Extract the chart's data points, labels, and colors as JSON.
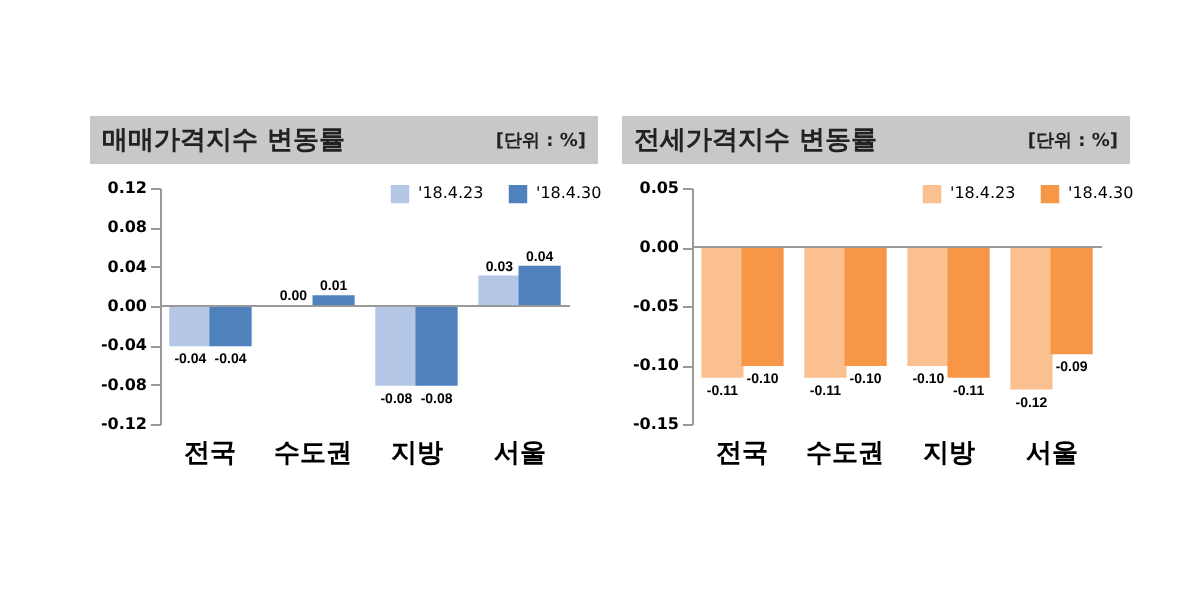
{
  "chart_data": [
    {
      "type": "bar",
      "title": "매매가격지수 변동률",
      "annotations": [
        "[단위 : %]"
      ],
      "categories": [
        "전국",
        "수도권",
        "지방",
        "서울"
      ],
      "series": [
        {
          "name": "'18.4.23",
          "color": "#b4c7e7",
          "values": [
            -0.04,
            0.0,
            -0.08,
            0.03
          ],
          "value_labels": [
            "-0.04",
            "0.00",
            "-0.08",
            "0.03"
          ]
        },
        {
          "name": "'18.4.30",
          "color": "#4f81bd",
          "values": [
            -0.04,
            0.01,
            -0.08,
            0.04
          ],
          "value_labels": [
            "-0.04",
            "0.01",
            "-0.08",
            "0.04"
          ]
        }
      ],
      "ylim": [
        -0.12,
        0.12
      ],
      "yticks": [
        {
          "value": -0.12,
          "label": "-0.12"
        },
        {
          "value": -0.08,
          "label": "-0.08"
        },
        {
          "value": -0.04,
          "label": "-0.04"
        },
        {
          "value": 0,
          "label": "0.00"
        },
        {
          "value": 0.04,
          "label": "0.04"
        },
        {
          "value": 0.08,
          "label": "0.08"
        },
        {
          "value": 0.12,
          "label": "0.12"
        }
      ],
      "ref_lines": [
        {
          "axis": "y",
          "value": 0,
          "color": "#999999"
        }
      ],
      "legend": "top right"
    },
    {
      "type": "bar",
      "title": "전세가격지수 변동률",
      "annotations": [
        "[단위 : %]"
      ],
      "categories": [
        "전국",
        "수도권",
        "지방",
        "서울"
      ],
      "series": [
        {
          "name": "'18.4.23",
          "color": "#fac090",
          "values": [
            -0.11,
            -0.11,
            -0.1,
            -0.12
          ],
          "value_labels": [
            "-0.11",
            "-0.11",
            "-0.10",
            "-0.12"
          ]
        },
        {
          "name": "'18.4.30",
          "color": "#f79646",
          "values": [
            -0.1,
            -0.1,
            -0.11,
            -0.09
          ],
          "value_labels": [
            "-0.10",
            "-0.10",
            "-0.11",
            "-0.09"
          ]
        }
      ],
      "ylim": [
        -0.15,
        0.05
      ],
      "yticks": [
        {
          "value": -0.15,
          "label": "-0.15"
        },
        {
          "value": -0.1,
          "label": "-0.10"
        },
        {
          "value": -0.05,
          "label": "-0.05"
        },
        {
          "value": 0,
          "label": "0.00"
        },
        {
          "value": 0.05,
          "label": "0.05"
        }
      ],
      "ref_lines": [
        {
          "axis": "y",
          "value": 0,
          "color": "#999999"
        }
      ],
      "legend": "top right"
    }
  ]
}
